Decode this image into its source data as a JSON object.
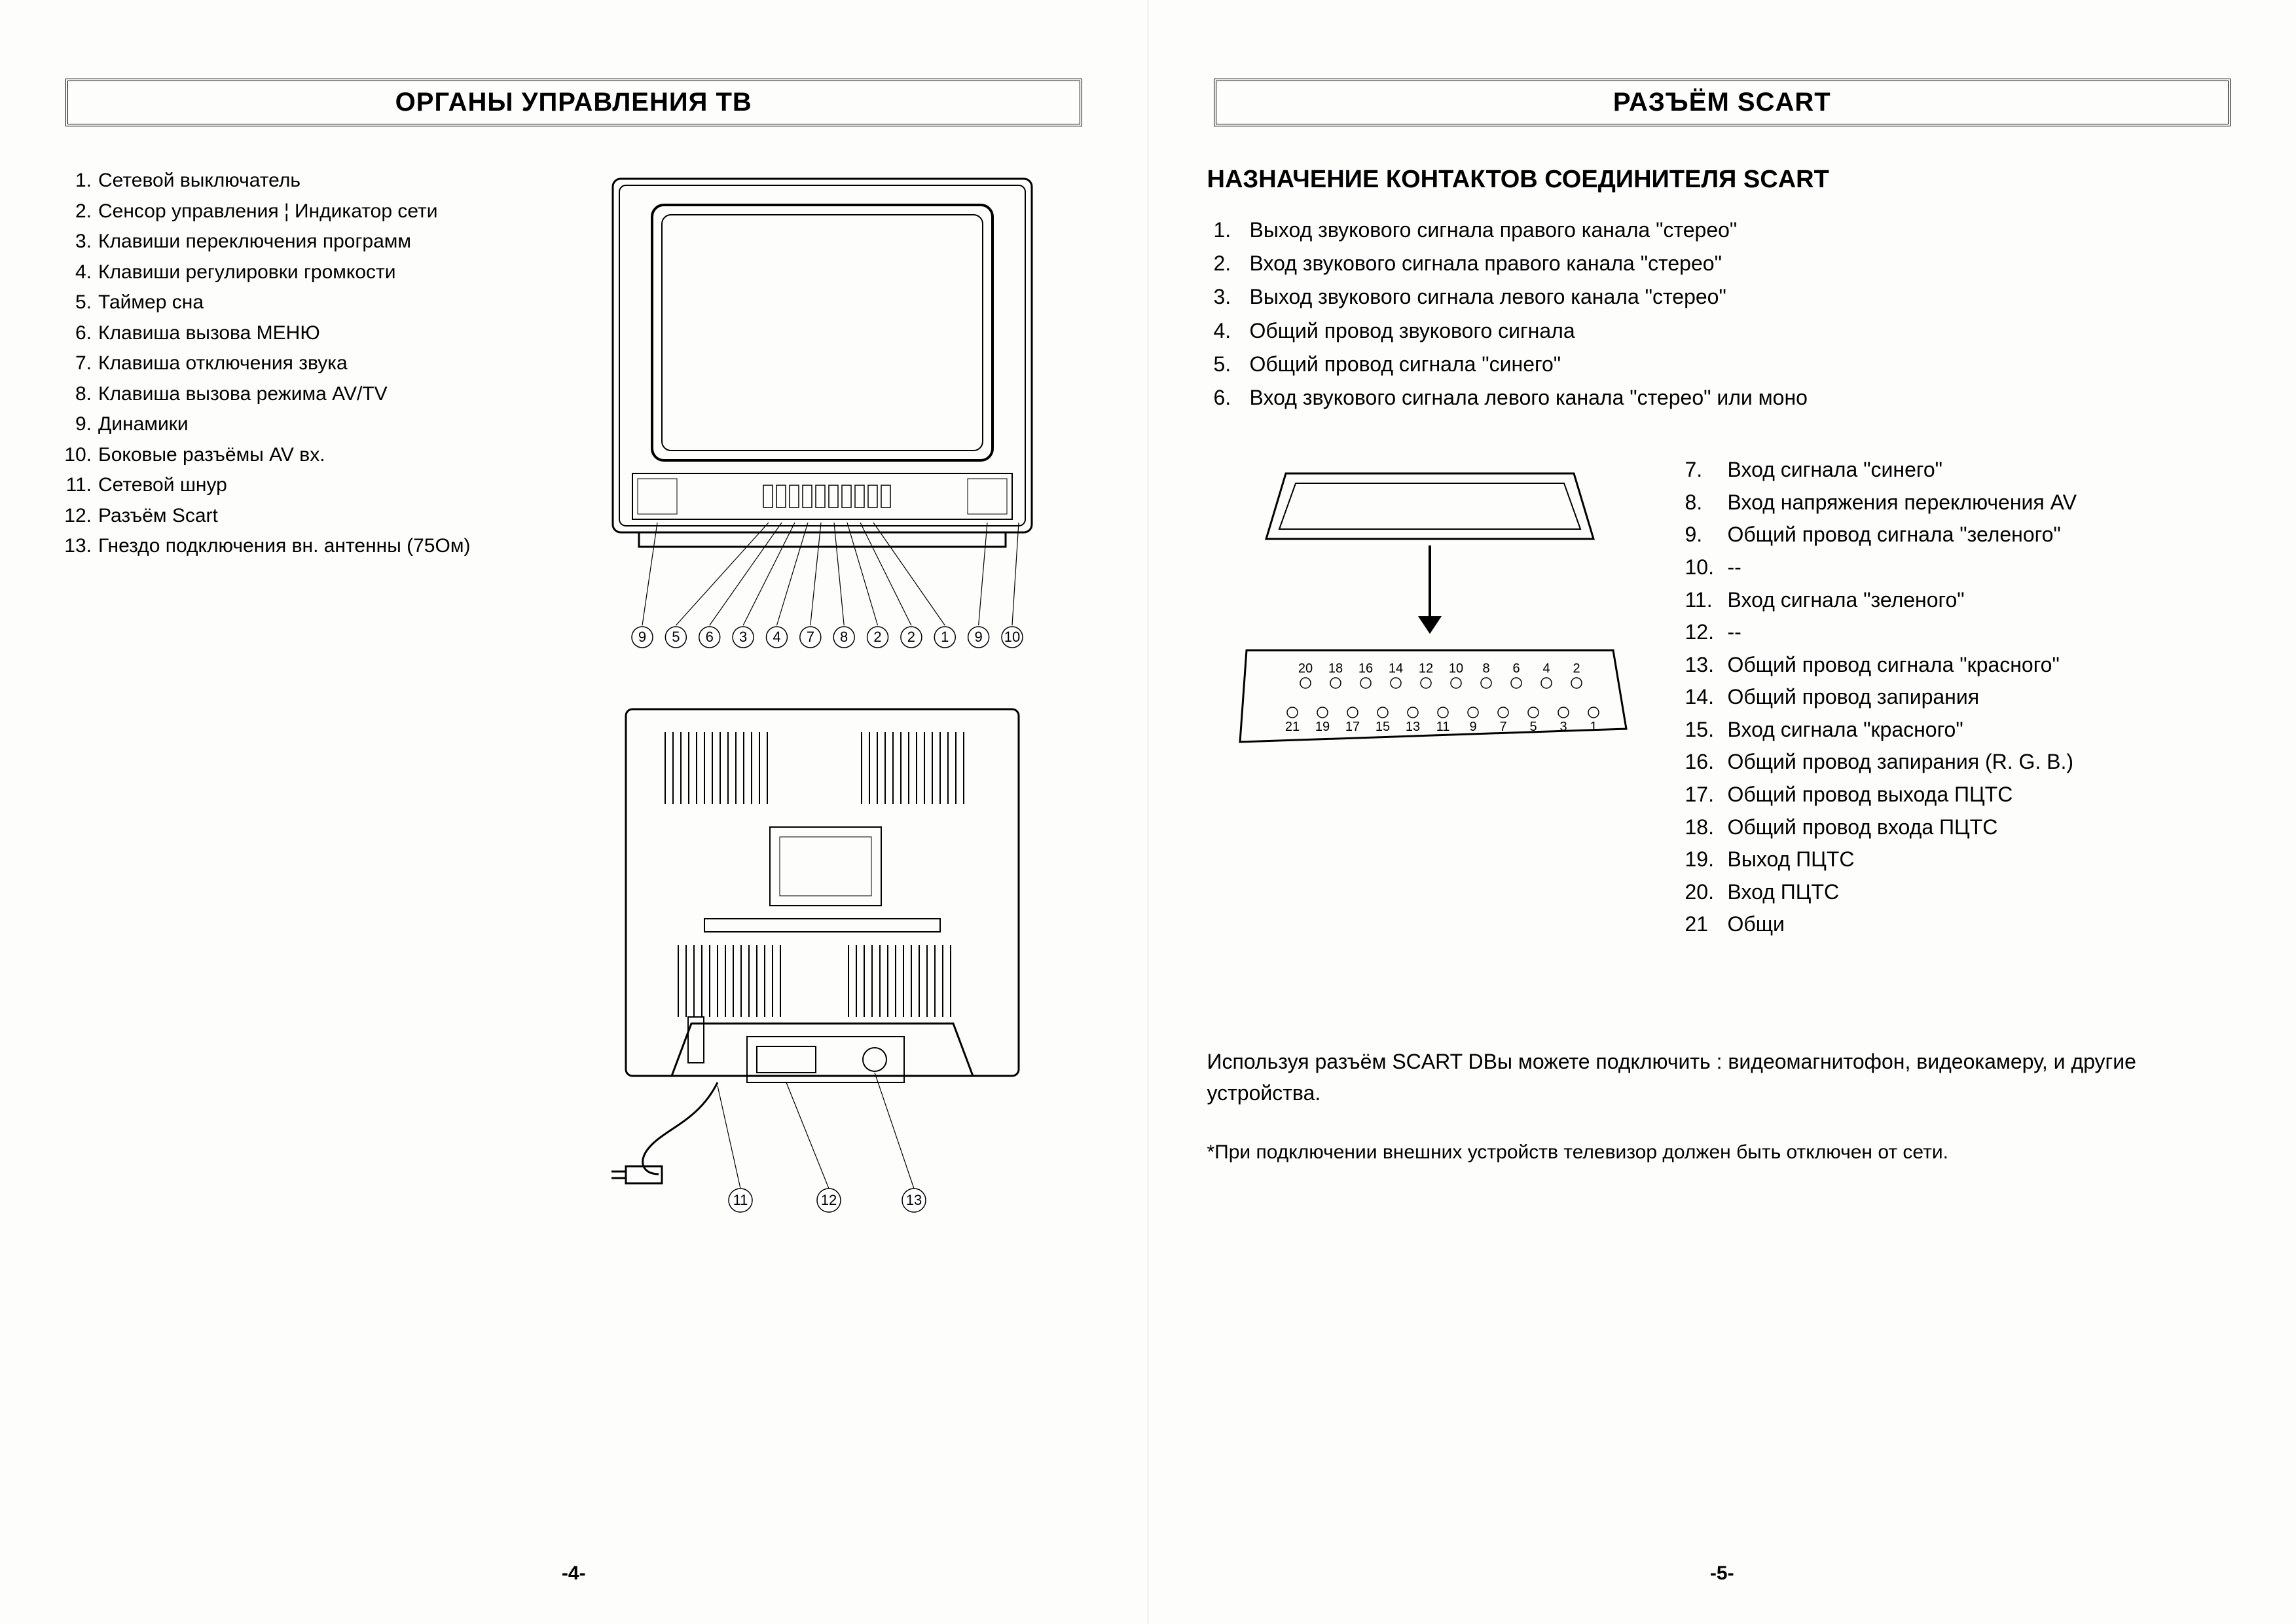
{
  "colors": {
    "bg": "#fdfdfb",
    "line": "#000000"
  },
  "left": {
    "title": "ОРГАНЫ УПРАВЛЕНИЯ ТВ",
    "page_number": "-4-",
    "controls": [
      "Сетевой выключатель",
      "Сенсор управления ¦ Индикатор сети",
      "Клавиши переключения программ",
      "Клавиши регулировки громкости",
      "Таймер сна",
      "Клавиша вызова МЕНЮ",
      "Клавиша отключения звука",
      "Клавиша вызова режима AV/TV",
      "Динамики",
      "Боковые разъёмы AV вх.",
      "Сетевой шнур",
      "Разъём Scart",
      "Гнездо подключения вн. антенны (75Ом)"
    ],
    "front_callouts_row": [
      "9",
      "5",
      "6",
      "3",
      "4",
      "7",
      "8",
      "2",
      "2",
      "1",
      "9",
      "10"
    ],
    "back_callouts_row": [
      "11",
      "12",
      "13"
    ]
  },
  "right": {
    "title": "РАЗЪЁМ SCART",
    "subtitle": "НАЗНАЧЕНИЕ КОНТАКТОВ СОЕДИНИТЕЛЯ SCART",
    "page_number": "-5-",
    "pins_top": [
      "Выход звукового сигнала правого канала \"стерео\"",
      "Вход звукового сигнала правого канала \"стерео\"",
      "Выход звукового сигнала левого канала \"стерео\"",
      "Общий провод звукового сигнала",
      "Общий провод сигнала \"синего\"",
      "Вход звукового сигнала левого канала \"стерео\" или моно"
    ],
    "pins_side": [
      {
        "n": "7.",
        "t": "Вход сигнала \"синего\""
      },
      {
        "n": "8.",
        "t": "Вход напряжения переключения AV"
      },
      {
        "n": "9.",
        "t": "Общий провод сигнала \"зеленого\""
      },
      {
        "n": "10.",
        "t": "--"
      },
      {
        "n": "11.",
        "t": "Вход сигнала \"зеленого\""
      },
      {
        "n": "12.",
        "t": "--"
      },
      {
        "n": "13.",
        "t": "Общий провод сигнала \"красного\""
      },
      {
        "n": "14.",
        "t": "Общий провод запирания"
      },
      {
        "n": "15.",
        "t": "Вход сигнала \"красного\""
      },
      {
        "n": "16.",
        "t": "Общий провод запирания (R. G. B.)"
      },
      {
        "n": "17.",
        "t": "Общий провод выхода ПЦТС"
      },
      {
        "n": "18.",
        "t": "Общий провод входа ПЦТС"
      },
      {
        "n": "19.",
        "t": "Выход ПЦТС"
      },
      {
        "n": "20.",
        "t": "Вход ПЦТС"
      },
      {
        "n": "21",
        "t": "Общи"
      }
    ],
    "scart_top_row": [
      "20",
      "18",
      "16",
      "14",
      "12",
      "10",
      "8",
      "6",
      "4",
      "2"
    ],
    "scart_bot_row": [
      "21",
      "19",
      "17",
      "15",
      "13",
      "11",
      "9",
      "7",
      "5",
      "3",
      "1"
    ],
    "footer": "Используя разъём SCART DВы можете подключить : видеомагнитофон, видеокамеру, и другие устройства.",
    "note": "*При подключении внешних устройств телевизор должен быть отключен от сети."
  }
}
